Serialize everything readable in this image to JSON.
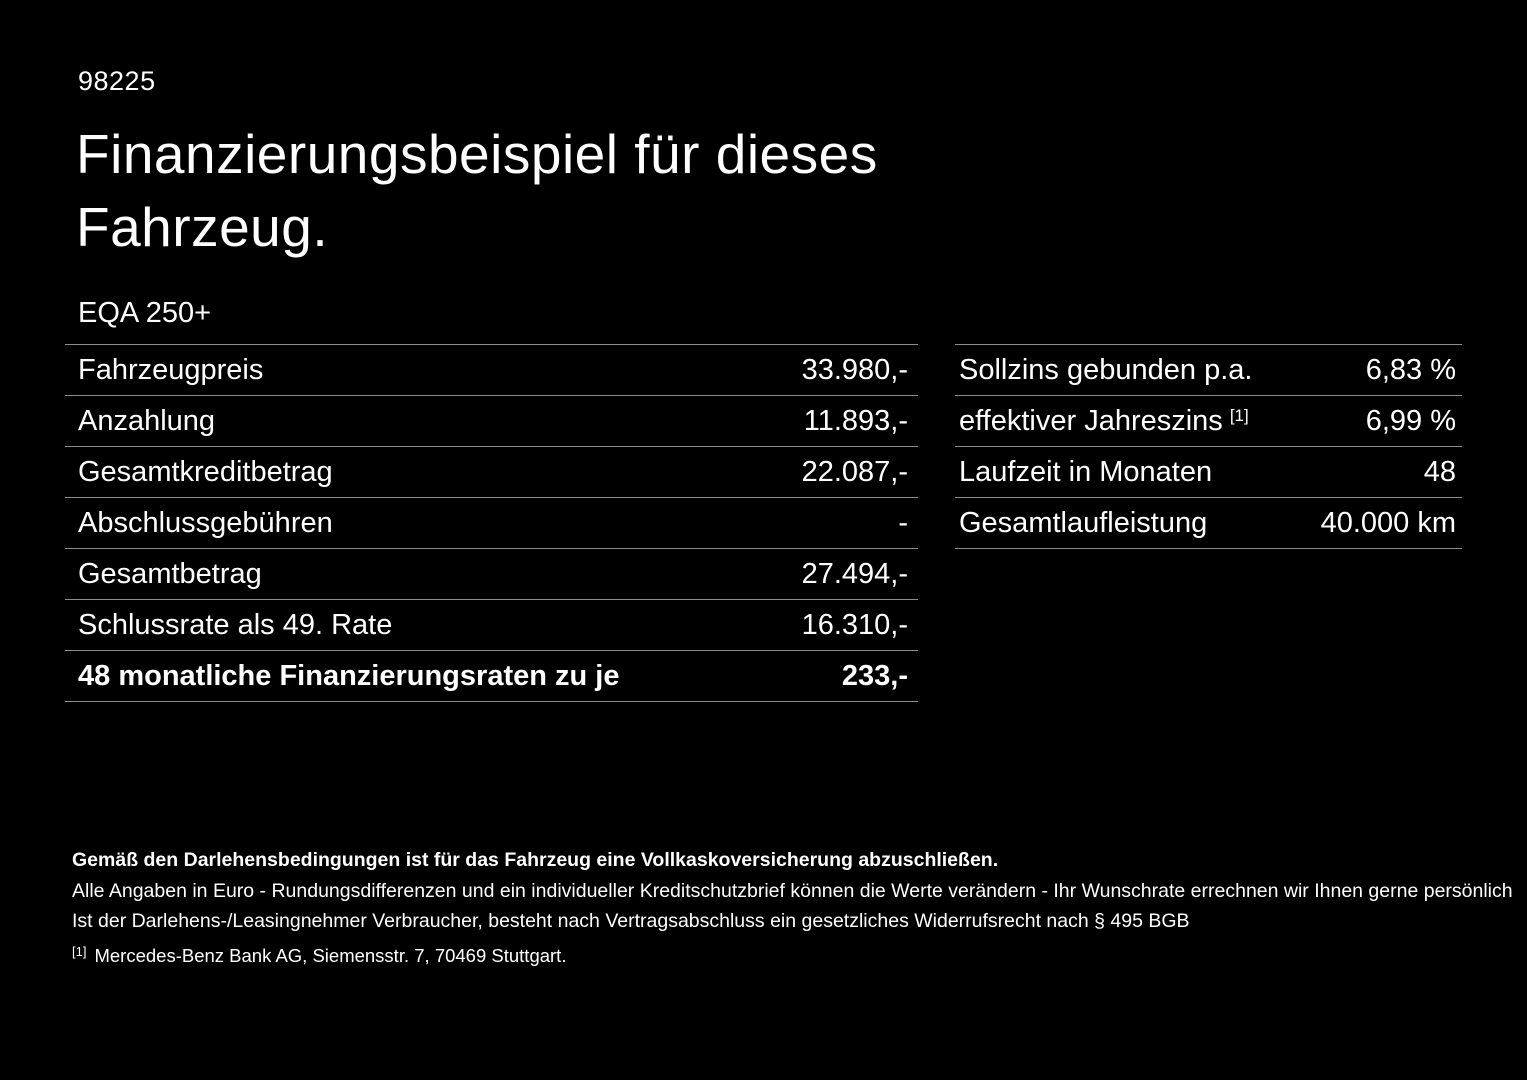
{
  "header": {
    "doc_id": "98225",
    "title_line1": "Finanzierungsbeispiel für dieses",
    "title_line2": "Fahrzeug.",
    "model": "EQA 250+"
  },
  "finance": {
    "rows": [
      {
        "label": "Fahrzeugpreis",
        "value": "33.980,-"
      },
      {
        "label": "Anzahlung",
        "value": "11.893,-"
      },
      {
        "label": "Gesamtkreditbetrag",
        "value": "22.087,-"
      },
      {
        "label": "Abschlussgebühren",
        "value": "-"
      },
      {
        "label": "Gesamtbetrag",
        "value": "27.494,-"
      },
      {
        "label": "Schlussrate als 49. Rate",
        "value": "16.310,-"
      },
      {
        "label": "48 monatliche Finanzierungsraten zu je",
        "value": "233,-"
      }
    ]
  },
  "conditions": {
    "rows": [
      {
        "label": "Sollzins gebunden p.a.",
        "value": "6,83 %"
      },
      {
        "label": "effektiver Jahreszins",
        "footnote": "[1]",
        "value": "6,99 %"
      },
      {
        "label": "Laufzeit in Monaten",
        "value": "48"
      },
      {
        "label": "Gesamtlaufleistung",
        "value": "40.000 km"
      }
    ]
  },
  "footer": {
    "insurance_note": "Gemäß den Darlehensbedingungen ist für das Fahrzeug eine Vollkaskoversicherung abzuschließen.",
    "note_rounding": "Alle Angaben in Euro - Rundungsdifferenzen und ein individueller Kreditschutzbrief können die Werte verändern - Ihr Wunschrate errechnen wir Ihnen gerne persönlich",
    "note_withdrawal": "Ist der Darlehens-/Leasingnehmer Verbraucher, besteht nach Vertragsabschluss ein gesetzliches Widerrufsrecht nach § 495 BGB",
    "footnote_marker": "[1]",
    "footnote_text": "Mercedes-Benz Bank AG, Siemensstr. 7, 70469 Stuttgart."
  },
  "colors": {
    "background": "#000000",
    "text": "#ffffff",
    "divider": "#8c8c8c"
  }
}
